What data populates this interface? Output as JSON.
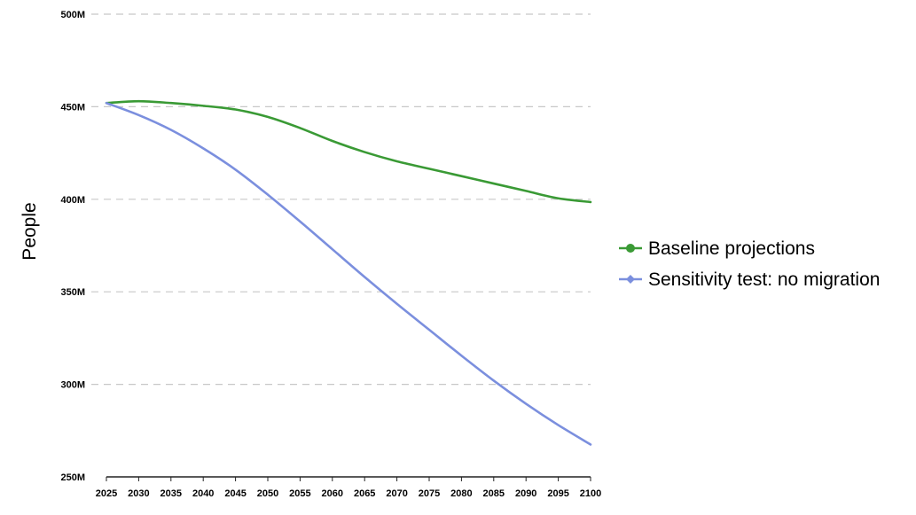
{
  "chart_data": {
    "type": "line",
    "title": "",
    "xlabel": "",
    "ylabel": "People",
    "x": [
      2025,
      2030,
      2035,
      2040,
      2045,
      2050,
      2055,
      2060,
      2065,
      2070,
      2075,
      2080,
      2085,
      2090,
      2095,
      2100
    ],
    "x_tick_labels": [
      "2025",
      "2030",
      "2035",
      "2040",
      "2045",
      "2050",
      "2055",
      "2060",
      "2065",
      "2070",
      "2075",
      "2080",
      "2085",
      "2090",
      "2095",
      "2100"
    ],
    "ylim": [
      250,
      500
    ],
    "y_unit": "M",
    "y_ticks": [
      250,
      300,
      350,
      400,
      450,
      500
    ],
    "y_tick_labels": [
      "250M",
      "300M",
      "350M",
      "400M",
      "450M",
      "500M"
    ],
    "grid": "horizontal dashed",
    "legend_position": "right",
    "series": [
      {
        "name": "Baseline projections",
        "color": "#3a9a35",
        "marker": "circle",
        "values": [
          452,
          453,
          452,
          450.5,
          448.5,
          444.5,
          438.5,
          431.5,
          425.5,
          420.5,
          416.5,
          412.5,
          408.5,
          404.5,
          400.5,
          398.5
        ]
      },
      {
        "name": "Sensitivity test: no migration",
        "color": "#7b8fde",
        "marker": "diamond",
        "values": [
          452,
          445.5,
          437.5,
          427.5,
          416,
          402.5,
          388,
          373,
          358,
          343.5,
          329.5,
          315.5,
          302,
          289.5,
          278,
          267.5
        ]
      }
    ]
  }
}
